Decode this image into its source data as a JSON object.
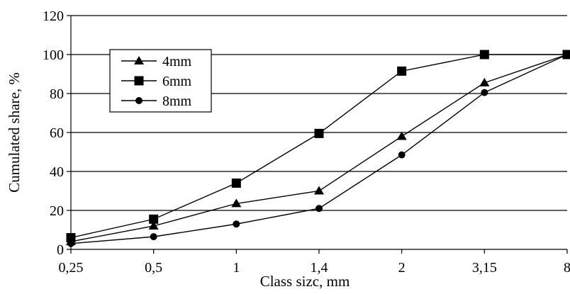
{
  "chart_data": {
    "type": "line",
    "xlabel": "Class sizc, mm",
    "ylabel": "Cumulated share, %",
    "categories": [
      "0,25",
      "0,5",
      "1",
      "1,4",
      "2",
      "3,15",
      "8"
    ],
    "ylim": [
      0,
      120
    ],
    "yticks": [
      "0",
      "20",
      "40",
      "60",
      "80",
      "100",
      "120"
    ],
    "grid": "horizontal",
    "legend_position": "top-left",
    "series": [
      {
        "name": "4mm",
        "marker": "triangle",
        "values": [
          4,
          12,
          23.5,
          30,
          58,
          85.5,
          100
        ]
      },
      {
        "name": "6mm",
        "marker": "square",
        "values": [
          6,
          15.5,
          34,
          59.5,
          91.5,
          100,
          100
        ]
      },
      {
        "name": "8mm",
        "marker": "circle",
        "values": [
          3,
          6.5,
          13,
          21,
          48.5,
          80.5,
          100
        ]
      }
    ]
  }
}
